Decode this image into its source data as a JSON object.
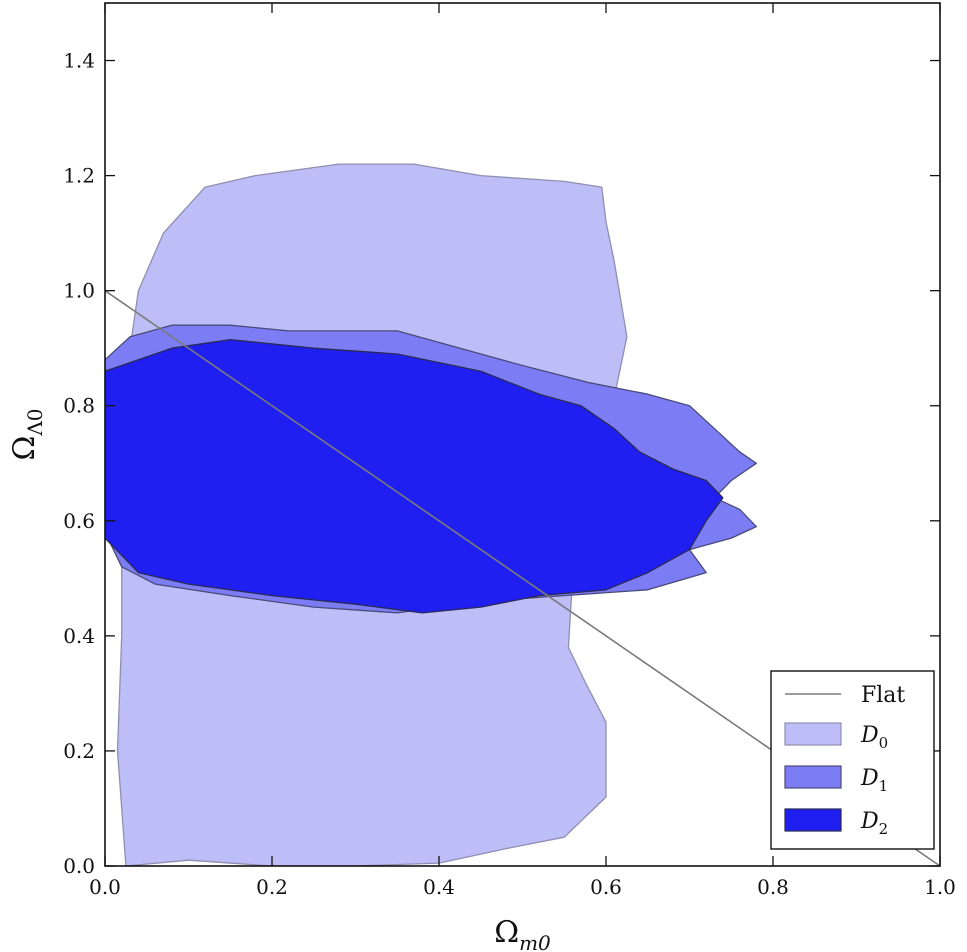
{
  "chart_data": {
    "type": "area",
    "xlabel": "Ω",
    "xlabel_sub": "m0",
    "ylabel": "Ω",
    "ylabel_sub": "Λ0",
    "xlim": [
      0.0,
      1.0
    ],
    "ylim": [
      0.0,
      1.5
    ],
    "xticks": [
      "0.0",
      "0.2",
      "0.4",
      "0.6",
      "0.8",
      "1.0"
    ],
    "yticks": [
      "0.0",
      "0.2",
      "0.4",
      "0.6",
      "0.8",
      "1.0",
      "1.2",
      "1.4"
    ],
    "grid": false,
    "legend_position": "bottom-right",
    "flat_line": {
      "name": "Flat",
      "color": "#7a7a7a",
      "points": [
        [
          0.0,
          1.0
        ],
        [
          1.0,
          0.0
        ]
      ]
    },
    "series": [
      {
        "name": "D",
        "subscript": "0",
        "fill": "#bdbdf8",
        "stroke": "#8f8fb0",
        "contour": [
          [
            0.025,
            0.0
          ],
          [
            0.1,
            0.01
          ],
          [
            0.2,
            0.0
          ],
          [
            0.3,
            0.0
          ],
          [
            0.4,
            0.005
          ],
          [
            0.48,
            0.03
          ],
          [
            0.55,
            0.05
          ],
          [
            0.6,
            0.12
          ],
          [
            0.6,
            0.25
          ],
          [
            0.575,
            0.32
          ],
          [
            0.555,
            0.38
          ],
          [
            0.56,
            0.5
          ],
          [
            0.585,
            0.56
          ],
          [
            0.6,
            0.64
          ],
          [
            0.6,
            0.75
          ],
          [
            0.615,
            0.85
          ],
          [
            0.625,
            0.92
          ],
          [
            0.61,
            1.05
          ],
          [
            0.6,
            1.12
          ],
          [
            0.595,
            1.18
          ],
          [
            0.55,
            1.19
          ],
          [
            0.45,
            1.2
          ],
          [
            0.37,
            1.22
          ],
          [
            0.28,
            1.22
          ],
          [
            0.18,
            1.2
          ],
          [
            0.12,
            1.18
          ],
          [
            0.07,
            1.1
          ],
          [
            0.04,
            1.0
          ],
          [
            0.02,
            0.8
          ],
          [
            0.02,
            0.6
          ],
          [
            0.02,
            0.4
          ],
          [
            0.015,
            0.2
          ],
          [
            0.025,
            0.0
          ]
        ]
      },
      {
        "name": "D",
        "subscript": "1",
        "fill": "#7c7cf4",
        "stroke": "#4a4a7a",
        "contour": [
          [
            0.0,
            0.58
          ],
          [
            0.02,
            0.52
          ],
          [
            0.06,
            0.49
          ],
          [
            0.15,
            0.47
          ],
          [
            0.25,
            0.45
          ],
          [
            0.35,
            0.44
          ],
          [
            0.4,
            0.45
          ],
          [
            0.45,
            0.46
          ],
          [
            0.55,
            0.47
          ],
          [
            0.65,
            0.48
          ],
          [
            0.72,
            0.51
          ],
          [
            0.7,
            0.55
          ],
          [
            0.75,
            0.57
          ],
          [
            0.78,
            0.59
          ],
          [
            0.76,
            0.62
          ],
          [
            0.73,
            0.64
          ],
          [
            0.75,
            0.67
          ],
          [
            0.78,
            0.7
          ],
          [
            0.76,
            0.72
          ],
          [
            0.73,
            0.76
          ],
          [
            0.7,
            0.8
          ],
          [
            0.65,
            0.82
          ],
          [
            0.58,
            0.84
          ],
          [
            0.5,
            0.87
          ],
          [
            0.45,
            0.89
          ],
          [
            0.35,
            0.93
          ],
          [
            0.3,
            0.93
          ],
          [
            0.22,
            0.93
          ],
          [
            0.15,
            0.94
          ],
          [
            0.08,
            0.94
          ],
          [
            0.03,
            0.92
          ],
          [
            0.0,
            0.88
          ],
          [
            0.0,
            0.58
          ]
        ]
      },
      {
        "name": "D",
        "subscript": "2",
        "fill": "#1f1ff2",
        "stroke": "#2a2a55",
        "contour": [
          [
            0.0,
            0.57
          ],
          [
            0.04,
            0.51
          ],
          [
            0.1,
            0.49
          ],
          [
            0.2,
            0.47
          ],
          [
            0.3,
            0.455
          ],
          [
            0.38,
            0.44
          ],
          [
            0.45,
            0.45
          ],
          [
            0.52,
            0.47
          ],
          [
            0.6,
            0.48
          ],
          [
            0.65,
            0.51
          ],
          [
            0.7,
            0.55
          ],
          [
            0.72,
            0.6
          ],
          [
            0.74,
            0.64
          ],
          [
            0.72,
            0.67
          ],
          [
            0.68,
            0.69
          ],
          [
            0.64,
            0.72
          ],
          [
            0.61,
            0.76
          ],
          [
            0.57,
            0.8
          ],
          [
            0.52,
            0.82
          ],
          [
            0.45,
            0.86
          ],
          [
            0.35,
            0.89
          ],
          [
            0.25,
            0.9
          ],
          [
            0.15,
            0.915
          ],
          [
            0.08,
            0.9
          ],
          [
            0.04,
            0.88
          ],
          [
            0.0,
            0.86
          ],
          [
            0.0,
            0.57
          ]
        ]
      }
    ]
  }
}
